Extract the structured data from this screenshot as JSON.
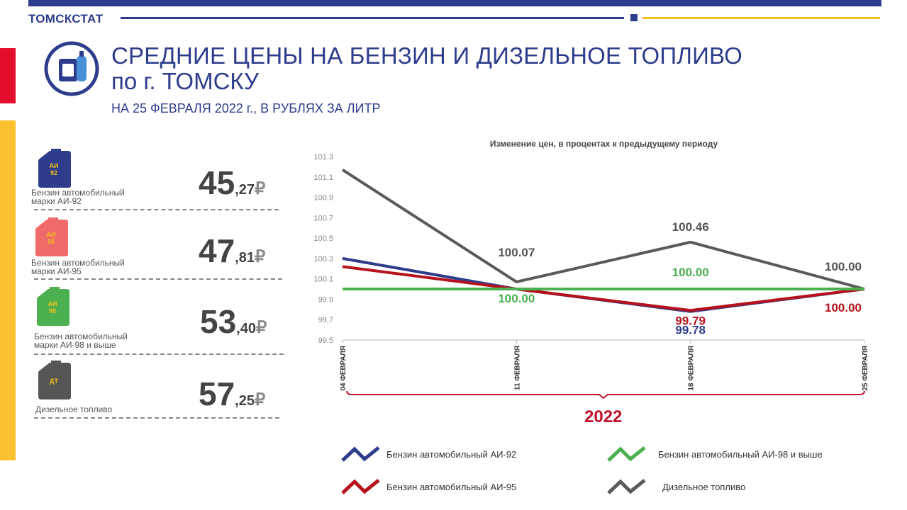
{
  "header": {
    "brand": "ТОМСКСТАТ",
    "title_line1": "СРЕДНИЕ ЦЕНЫ НА БЕНЗИН И ДИЗЕЛЬНОЕ ТОПЛИВО",
    "title_line2": "по г. ТОМСКУ",
    "subtitle": "НА 25 ФЕВРАЛЯ 2022 г., В РУБЛЯХ ЗА ЛИТР"
  },
  "colors": {
    "brand_blue": "#2e3c8c",
    "accent_red": "#e30e2d",
    "accent_yellow": "#fbc12e",
    "ai92": "#2e3c8c",
    "ai95": "#b5121b",
    "ai98": "#4caf50",
    "diesel": "#5a5a5a"
  },
  "fuels": [
    {
      "can_label": "АИ\n92",
      "name_line1": "Бензин автомобильный",
      "name_line2": "марки АИ-92",
      "price_int": "45",
      "price_frac": ",27",
      "currency": "₽",
      "can_color": "#2e3c8c",
      "label_color": "#f2c11b"
    },
    {
      "can_label": "АИ\n95",
      "name_line1": "Бензин автомобильный",
      "name_line2": "марки АИ-95",
      "price_int": "47",
      "price_frac": ",81",
      "currency": "₽",
      "can_color": "#f06a6a",
      "label_color": "#f2c11b"
    },
    {
      "can_label": "АИ\n98",
      "name_line1": "Бензин автомобильный",
      "name_line2": "марки АИ-98 и выше",
      "price_int": "53",
      "price_frac": ",40",
      "currency": "₽",
      "can_color": "#4caf50",
      "label_color": "#f2c11b"
    },
    {
      "can_label": "ДТ",
      "name_line1": "Дизельное топливо",
      "name_line2": "",
      "price_int": "57",
      "price_frac": ",25",
      "currency": "₽",
      "can_color": "#555555",
      "label_color": "#f2c11b"
    }
  ],
  "chart_data": {
    "type": "line",
    "title": "Изменение цен, в процентах к предыдущему периоду",
    "categories": [
      "04 ФЕВРАЛЯ",
      "11 ФЕВРАЛЯ",
      "18 ФЕВРАЛЯ",
      "25 ФЕВРАЛЯ"
    ],
    "ylim": [
      99.5,
      101.3
    ],
    "yticks": [
      "101.3",
      "101.1",
      "100.9",
      "100.7",
      "100.5",
      "100.3",
      "100.1",
      "99.9",
      "99.7",
      "99.5"
    ],
    "grid": false,
    "year_label": "2022",
    "series": [
      {
        "name": "Бензин автомобильный АИ-92",
        "color": "#2e3c8c",
        "values": [
          100.3,
          100.0,
          99.78,
          100.0
        ]
      },
      {
        "name": "Бензин автомобильный АИ-95",
        "color": "#b5121b",
        "values": [
          100.22,
          100.0,
          99.79,
          100.0
        ]
      },
      {
        "name": "Бензин автомобильный АИ-98 и выше",
        "color": "#4caf50",
        "values": [
          100.0,
          100.0,
          100.0,
          100.0
        ]
      },
      {
        "name": "Дизельное топливо",
        "color": "#5a5a5a",
        "values": [
          101.17,
          100.07,
          100.46,
          100.0
        ]
      }
    ],
    "data_labels": [
      {
        "text": "100.07",
        "series": 3,
        "point": 1,
        "color": "#555555"
      },
      {
        "text": "100.00",
        "series": 2,
        "point": 1,
        "color": "#4caf50"
      },
      {
        "text": "100.46",
        "series": 3,
        "point": 2,
        "color": "#555555"
      },
      {
        "text": "100.00",
        "series": 2,
        "point": 2,
        "color": "#4caf50"
      },
      {
        "text": "99.79",
        "series": 1,
        "point": 2,
        "color": "#b5121b"
      },
      {
        "text": "99.78",
        "series": 0,
        "point": 2,
        "color": "#2e3c8c"
      },
      {
        "text": "100.00",
        "series": 3,
        "point": 3,
        "color": "#555555"
      },
      {
        "text": "100.00",
        "series": 1,
        "point": 3,
        "color": "#b5121b"
      }
    ]
  },
  "legend": [
    {
      "label": "Бензин автомобильный  АИ-92",
      "color": "#2e3c8c"
    },
    {
      "label": "Бензин автомобильный  АИ-98 и выше",
      "color": "#4caf50"
    },
    {
      "label": "Бензин автомобильный  АИ-95",
      "color": "#b5121b"
    },
    {
      "label": "Дизельное топливо",
      "color": "#5a5a5a"
    }
  ]
}
